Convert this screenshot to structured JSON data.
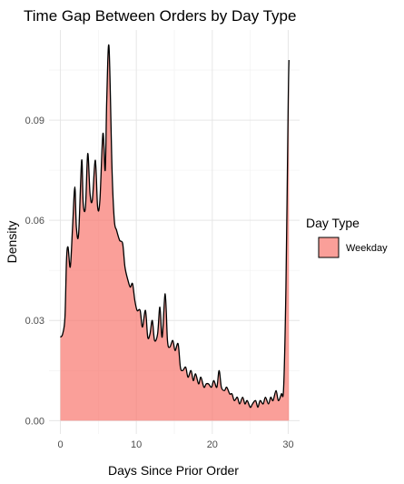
{
  "chart_data": {
    "type": "area",
    "title": "Time Gap Between Orders by Day Type",
    "xlabel": "Days Since Prior Order",
    "ylabel": "Density",
    "xlim": [
      -1.5,
      31.5
    ],
    "ylim": [
      -0.004,
      0.117
    ],
    "x_ticks": [
      0,
      10,
      20,
      30
    ],
    "x_tick_labels": [
      "0",
      "10",
      "20",
      "30"
    ],
    "y_ticks": [
      0.0,
      0.03,
      0.06,
      0.09
    ],
    "y_tick_labels": [
      "0.00",
      "0.03",
      "0.06",
      "0.09"
    ],
    "grid": true,
    "legend": {
      "title": "Day Type",
      "placement": "right"
    },
    "series": [
      {
        "name": "Weekday",
        "fill": "#F8766D",
        "fill_opacity": 0.7,
        "line_color": "#000000",
        "x": [
          0,
          0.3,
          0.6,
          0.8,
          1.0,
          1.3,
          1.6,
          1.9,
          2.1,
          2.4,
          2.8,
          3.0,
          3.3,
          3.6,
          3.9,
          4.2,
          4.6,
          4.9,
          5.2,
          5.6,
          5.9,
          6.1,
          6.4,
          6.8,
          7.1,
          7.4,
          7.8,
          8.2,
          8.5,
          8.9,
          9.2,
          9.5,
          9.8,
          10.1,
          10.5,
          10.8,
          11.2,
          11.5,
          11.8,
          12.1,
          12.4,
          12.8,
          13.1,
          13.4,
          13.8,
          14.1,
          14.4,
          14.8,
          15.1,
          15.5,
          15.8,
          16.1,
          16.5,
          16.8,
          17.2,
          17.5,
          17.8,
          18.2,
          18.5,
          18.9,
          19.2,
          19.5,
          19.9,
          20.2,
          20.6,
          20.9,
          21.2,
          21.6,
          21.9,
          22.3,
          22.6,
          22.9,
          23.3,
          23.6,
          24.0,
          24.3,
          24.6,
          25.0,
          25.3,
          25.7,
          26.0,
          26.3,
          26.7,
          27.0,
          27.4,
          27.7,
          28.0,
          28.4,
          28.7,
          29.1,
          29.4,
          29.7,
          30.0,
          30.1
        ],
        "y": [
          0.025,
          0.026,
          0.031,
          0.048,
          0.052,
          0.046,
          0.058,
          0.07,
          0.058,
          0.056,
          0.078,
          0.065,
          0.064,
          0.08,
          0.068,
          0.066,
          0.078,
          0.064,
          0.066,
          0.086,
          0.075,
          0.096,
          0.112,
          0.075,
          0.06,
          0.057,
          0.054,
          0.053,
          0.046,
          0.042,
          0.04,
          0.041,
          0.036,
          0.033,
          0.033,
          0.028,
          0.033,
          0.025,
          0.026,
          0.03,
          0.024,
          0.026,
          0.034,
          0.025,
          0.038,
          0.024,
          0.022,
          0.024,
          0.021,
          0.023,
          0.016,
          0.015,
          0.016,
          0.013,
          0.015,
          0.012,
          0.014,
          0.011,
          0.013,
          0.01,
          0.011,
          0.011,
          0.01,
          0.012,
          0.01,
          0.015,
          0.01,
          0.009,
          0.01,
          0.008,
          0.008,
          0.006,
          0.007,
          0.005,
          0.007,
          0.005,
          0.006,
          0.004,
          0.005,
          0.006,
          0.004,
          0.006,
          0.005,
          0.007,
          0.005,
          0.007,
          0.006,
          0.009,
          0.006,
          0.008,
          0.01,
          0.04,
          0.095,
          0.108
        ]
      }
    ]
  }
}
